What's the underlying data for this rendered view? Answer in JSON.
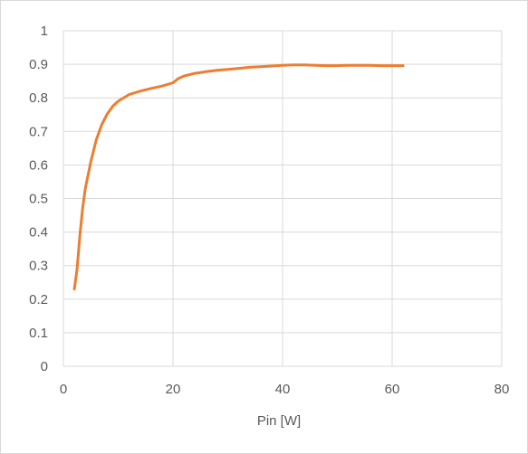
{
  "chart_data": {
    "type": "line",
    "title": "",
    "xlabel": "Pin [W]",
    "ylabel": "",
    "xlim": [
      0,
      80
    ],
    "ylim": [
      0,
      1
    ],
    "x_ticks": [
      "0",
      "20",
      "40",
      "60",
      "80"
    ],
    "y_ticks": [
      "0",
      "0.1",
      "0.2",
      "0.3",
      "0.4",
      "0.5",
      "0.6",
      "0.7",
      "0.8",
      "0.9",
      "1"
    ],
    "grid": true,
    "legend": "none",
    "series": [
      {
        "color": "#ed7d31",
        "x": [
          2,
          2.5,
          3,
          3.5,
          4,
          5,
          6,
          7,
          8,
          9,
          10,
          12,
          14,
          16,
          18,
          20,
          21,
          22,
          24,
          26,
          28,
          30,
          32,
          34,
          36,
          38,
          40,
          42,
          44,
          46,
          48,
          50,
          52,
          54,
          56,
          58,
          60,
          62
        ],
        "y": [
          0.23,
          0.29,
          0.39,
          0.47,
          0.53,
          0.61,
          0.675,
          0.72,
          0.752,
          0.775,
          0.79,
          0.81,
          0.82,
          0.828,
          0.835,
          0.845,
          0.858,
          0.865,
          0.873,
          0.878,
          0.882,
          0.885,
          0.888,
          0.891,
          0.893,
          0.895,
          0.897,
          0.898,
          0.898,
          0.897,
          0.896,
          0.896,
          0.897,
          0.897,
          0.897,
          0.896,
          0.896,
          0.896
        ]
      }
    ]
  }
}
